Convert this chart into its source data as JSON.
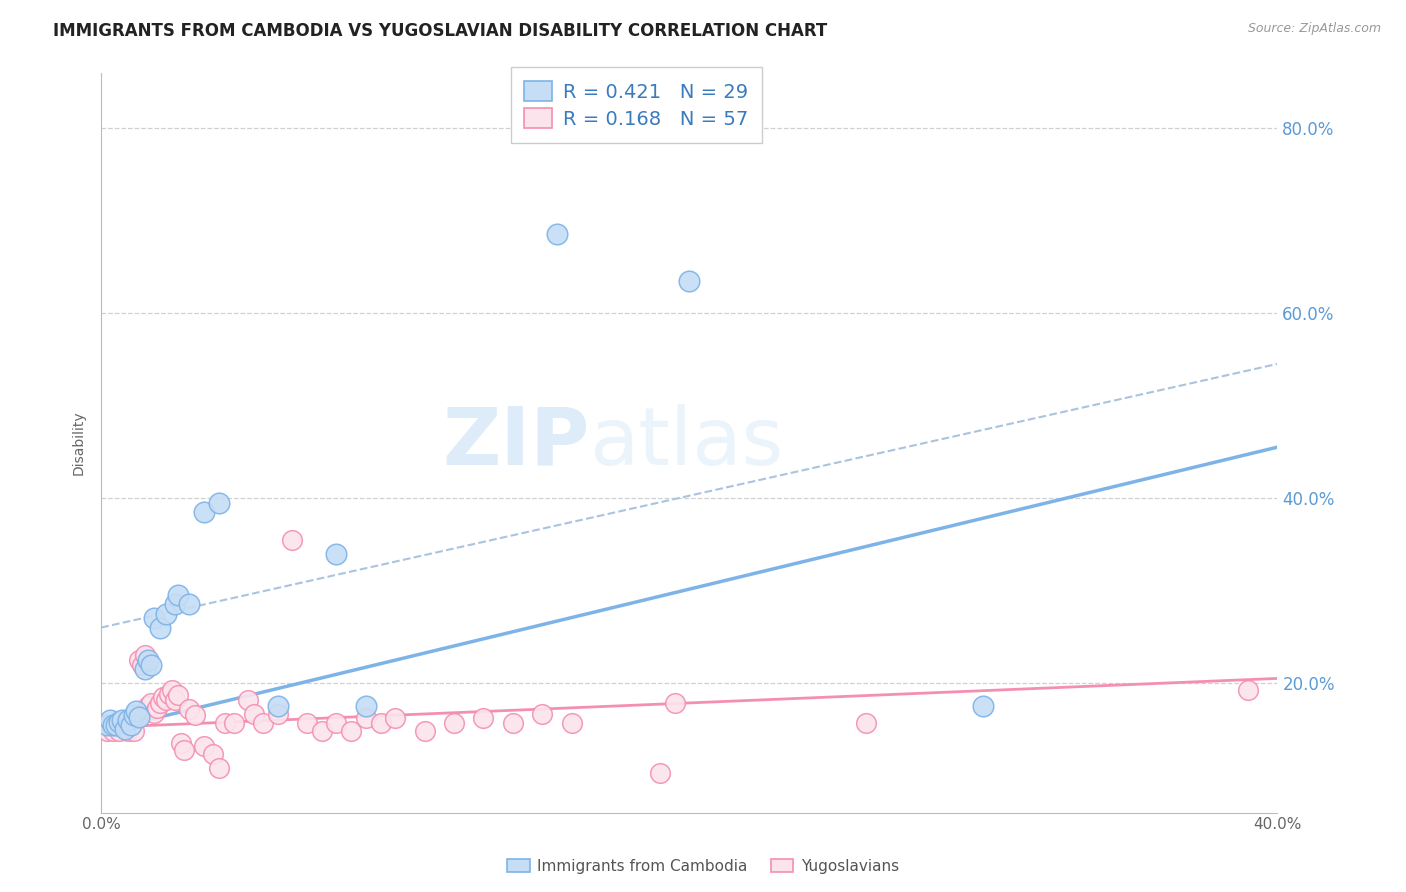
{
  "title": "IMMIGRANTS FROM CAMBODIA VS YUGOSLAVIAN DISABILITY CORRELATION CHART",
  "source": "Source: ZipAtlas.com",
  "ylabel": "Disability",
  "ytick_labels": [
    "80.0%",
    "60.0%",
    "40.0%",
    "20.0%"
  ],
  "ytick_values": [
    0.8,
    0.6,
    0.4,
    0.2
  ],
  "xlim": [
    0.0,
    0.4
  ],
  "ylim": [
    0.06,
    0.86
  ],
  "legend_entry1": {
    "R": "0.421",
    "N": "29"
  },
  "legend_entry2": {
    "R": "0.168",
    "N": "57"
  },
  "watermark_zip": "ZIP",
  "watermark_atlas": "atlas",
  "cambodia_points": [
    [
      0.002,
      0.155
    ],
    [
      0.003,
      0.16
    ],
    [
      0.004,
      0.155
    ],
    [
      0.005,
      0.155
    ],
    [
      0.006,
      0.158
    ],
    [
      0.007,
      0.16
    ],
    [
      0.008,
      0.15
    ],
    [
      0.009,
      0.16
    ],
    [
      0.01,
      0.155
    ],
    [
      0.011,
      0.165
    ],
    [
      0.012,
      0.17
    ],
    [
      0.013,
      0.163
    ],
    [
      0.015,
      0.215
    ],
    [
      0.016,
      0.225
    ],
    [
      0.017,
      0.22
    ],
    [
      0.018,
      0.27
    ],
    [
      0.02,
      0.26
    ],
    [
      0.022,
      0.275
    ],
    [
      0.025,
      0.285
    ],
    [
      0.026,
      0.295
    ],
    [
      0.03,
      0.285
    ],
    [
      0.035,
      0.385
    ],
    [
      0.04,
      0.395
    ],
    [
      0.06,
      0.175
    ],
    [
      0.08,
      0.34
    ],
    [
      0.09,
      0.175
    ],
    [
      0.155,
      0.685
    ],
    [
      0.2,
      0.635
    ],
    [
      0.3,
      0.175
    ]
  ],
  "yugoslavian_points": [
    [
      0.001,
      0.155
    ],
    [
      0.002,
      0.148
    ],
    [
      0.003,
      0.155
    ],
    [
      0.004,
      0.148
    ],
    [
      0.005,
      0.155
    ],
    [
      0.006,
      0.148
    ],
    [
      0.007,
      0.152
    ],
    [
      0.008,
      0.157
    ],
    [
      0.009,
      0.148
    ],
    [
      0.01,
      0.155
    ],
    [
      0.011,
      0.148
    ],
    [
      0.012,
      0.162
    ],
    [
      0.013,
      0.225
    ],
    [
      0.014,
      0.22
    ],
    [
      0.015,
      0.23
    ],
    [
      0.016,
      0.175
    ],
    [
      0.017,
      0.178
    ],
    [
      0.018,
      0.168
    ],
    [
      0.019,
      0.173
    ],
    [
      0.02,
      0.178
    ],
    [
      0.021,
      0.185
    ],
    [
      0.022,
      0.182
    ],
    [
      0.023,
      0.188
    ],
    [
      0.024,
      0.192
    ],
    [
      0.025,
      0.182
    ],
    [
      0.026,
      0.187
    ],
    [
      0.027,
      0.135
    ],
    [
      0.028,
      0.128
    ],
    [
      0.03,
      0.172
    ],
    [
      0.032,
      0.165
    ],
    [
      0.035,
      0.132
    ],
    [
      0.038,
      0.123
    ],
    [
      0.04,
      0.108
    ],
    [
      0.042,
      0.157
    ],
    [
      0.045,
      0.157
    ],
    [
      0.05,
      0.182
    ],
    [
      0.052,
      0.167
    ],
    [
      0.055,
      0.157
    ],
    [
      0.06,
      0.167
    ],
    [
      0.065,
      0.355
    ],
    [
      0.07,
      0.157
    ],
    [
      0.075,
      0.148
    ],
    [
      0.08,
      0.157
    ],
    [
      0.085,
      0.148
    ],
    [
      0.09,
      0.162
    ],
    [
      0.095,
      0.157
    ],
    [
      0.1,
      0.162
    ],
    [
      0.11,
      0.148
    ],
    [
      0.12,
      0.157
    ],
    [
      0.13,
      0.162
    ],
    [
      0.14,
      0.157
    ],
    [
      0.15,
      0.167
    ],
    [
      0.16,
      0.157
    ],
    [
      0.19,
      0.103
    ],
    [
      0.195,
      0.178
    ],
    [
      0.26,
      0.157
    ],
    [
      0.39,
      0.192
    ]
  ],
  "blue_line": {
    "x0": 0.0,
    "y0": 0.148,
    "x1": 0.4,
    "y1": 0.455
  },
  "pink_line": {
    "x0": 0.0,
    "y0": 0.152,
    "x1": 0.4,
    "y1": 0.205
  },
  "gray_dash_line": {
    "x0": 0.0,
    "y0": 0.26,
    "x1": 0.4,
    "y1": 0.545
  },
  "blue_color": "#7eb3e8",
  "pink_color": "#f48fb1",
  "blue_fill": "#c5ddf5",
  "pink_fill": "#fce4ec",
  "bg_color": "#ffffff",
  "grid_color": "#d0d0d0",
  "axis_color": "#bbbbbb",
  "title_fontsize": 12,
  "label_fontsize": 10,
  "tick_fontsize": 11,
  "right_tick_color": "#5b9bd5",
  "legend_text_color": "#3a7bbf",
  "bottom_legend_labels": [
    "Immigrants from Cambodia",
    "Yugoslavians"
  ]
}
